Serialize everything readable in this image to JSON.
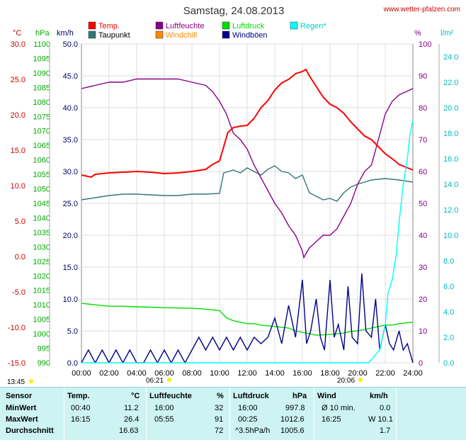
{
  "header": {
    "title": "Samstag, 24.08.2013",
    "source": "www.wetter-pfalzen.com"
  },
  "axis_units": {
    "temp": "°C",
    "pressure": "hPa",
    "wind": "km/h",
    "humidity": "%",
    "rain": "l/m²"
  },
  "legend": [
    {
      "label": "Temp.",
      "color": "#ff0000"
    },
    {
      "label": "Taupunkt",
      "color": "#337777"
    },
    {
      "label": "Luftfeuchte",
      "color": "#880088"
    },
    {
      "label": "Windchill",
      "color": "#ff8800"
    },
    {
      "label": "Luftdruck",
      "color": "#00dd00"
    },
    {
      "label": "Windböen",
      "color": "#000088"
    },
    {
      "label": "Regen*",
      "color": "#00ffff"
    }
  ],
  "sun": {
    "sunrise_prev": "13:45",
    "sunrise": "06:21",
    "sunset": "20:06"
  },
  "chart_data": {
    "type": "line",
    "title": "Samstag, 24.08.2013",
    "x_ticks": [
      "00:00",
      "02:00",
      "04:00",
      "06:00",
      "08:00",
      "10:00",
      "12:00",
      "14:00",
      "16:00",
      "18:00",
      "20:00",
      "22:00",
      "24:00"
    ],
    "axes": {
      "temp": {
        "unit": "°C",
        "range": [
          -15,
          30
        ],
        "ticks": [
          "30.0",
          "25.0",
          "20.0",
          "15.0",
          "10.0",
          "5.0",
          "0.0",
          "-5.0",
          "-10.0",
          "-15.0"
        ]
      },
      "pressure": {
        "unit": "hPa",
        "range": [
          990,
          1100
        ],
        "ticks": [
          "1100",
          "1095",
          "1090",
          "1085",
          "1080",
          "1075",
          "1070",
          "1065",
          "1060",
          "1055",
          "1050",
          "1045",
          "1040",
          "1035",
          "1030",
          "1025",
          "1020",
          "1015",
          "1010",
          "1005",
          "1000",
          "995",
          "990"
        ]
      },
      "wind": {
        "unit": "km/h",
        "range": [
          0,
          50
        ],
        "ticks": [
          "50.0",
          "45.0",
          "40.0",
          "35.0",
          "30.0",
          "25.0",
          "20.0",
          "15.0",
          "10.0",
          "5.0",
          "0.0"
        ]
      },
      "humidity": {
        "unit": "%",
        "range": [
          0,
          100
        ],
        "ticks": [
          "100",
          "90",
          "80",
          "70",
          "60",
          "50",
          "40",
          "30",
          "20",
          "10",
          "0"
        ]
      },
      "rain": {
        "unit": "l/m²",
        "range": [
          0,
          25
        ],
        "ticks": [
          "24.0",
          "22.0",
          "20.0",
          "18.0",
          "16.0",
          "14.0",
          "12.0",
          "10.0",
          "8.0",
          "6.0",
          "4.0",
          "2.0",
          "0.0"
        ]
      }
    },
    "series": [
      {
        "name": "Temp.",
        "axis": "temp",
        "color": "#ff0000",
        "x": [
          0,
          0.7,
          1,
          2,
          3,
          4,
          5,
          6,
          7,
          8,
          9,
          9.5,
          10,
          10.3,
          10.6,
          11,
          11.5,
          12,
          12.5,
          13,
          13.5,
          14,
          14.5,
          15,
          15.5,
          16,
          16.25,
          16.5,
          17,
          17.5,
          18,
          18.5,
          19,
          19.5,
          20,
          20.5,
          21,
          21.5,
          22,
          22.5,
          23,
          24
        ],
        "y": [
          11.5,
          11.2,
          11.6,
          11.8,
          11.9,
          12.0,
          11.9,
          11.7,
          11.8,
          12.0,
          12.3,
          13.0,
          13.5,
          15.5,
          17.5,
          18.2,
          18.4,
          18.5,
          19.5,
          21.0,
          22.0,
          23.5,
          24.5,
          25.0,
          25.8,
          26.1,
          26.4,
          25.5,
          24.0,
          22.5,
          21.5,
          21.0,
          20.2,
          19.0,
          18.0,
          17.0,
          16.5,
          15.5,
          14.5,
          13.8,
          13.0,
          12.2
        ]
      },
      {
        "name": "Taupunkt",
        "axis": "temp",
        "color": "#337777",
        "x": [
          0,
          1,
          2,
          3,
          4,
          5,
          6,
          7,
          8,
          9,
          10,
          10.3,
          11,
          11.5,
          12,
          12.5,
          13,
          13.5,
          14,
          14.5,
          15,
          15.5,
          16,
          16.5,
          17,
          17.5,
          18,
          18.5,
          19,
          19.5,
          20,
          20.5,
          21,
          22,
          23,
          24
        ],
        "y": [
          8.0,
          8.3,
          8.6,
          8.8,
          8.8,
          8.7,
          8.6,
          8.6,
          8.8,
          8.8,
          8.9,
          11.8,
          12.2,
          11.8,
          12.5,
          12.0,
          11.5,
          12.3,
          12.8,
          12.0,
          11.8,
          11.0,
          11.5,
          9.0,
          8.5,
          8.0,
          8.2,
          7.8,
          9.0,
          9.8,
          10.2,
          10.5,
          10.8,
          11.0,
          10.8,
          10.5
        ]
      },
      {
        "name": "Luftfeuchte",
        "axis": "humidity",
        "color": "#880088",
        "x": [
          0,
          1,
          2,
          3,
          4,
          5,
          6,
          7,
          8,
          9,
          9.5,
          10,
          10.5,
          11,
          11.5,
          12,
          12.5,
          13,
          13.5,
          14,
          14.5,
          15,
          15.5,
          16,
          16.1,
          16.5,
          17,
          17.5,
          18,
          18.5,
          19,
          19.5,
          20,
          20.5,
          21,
          21.5,
          22,
          22.5,
          23,
          24
        ],
        "y": [
          86,
          87,
          88,
          88,
          89,
          89,
          89,
          89,
          88,
          87,
          85,
          82,
          78,
          72,
          70,
          67,
          62,
          58,
          54,
          50,
          47,
          43,
          40,
          35,
          33,
          36,
          38,
          40,
          40,
          42,
          46,
          50,
          56,
          60,
          62,
          70,
          78,
          82,
          84,
          86
        ]
      },
      {
        "name": "Luftdruck",
        "axis": "pressure",
        "color": "#00dd00",
        "x": [
          0,
          1,
          2,
          3,
          4,
          5,
          6,
          7,
          8,
          9,
          10,
          10.5,
          11,
          11.5,
          12,
          12.5,
          13,
          14,
          15,
          15.5,
          16,
          17,
          18,
          18.5,
          19,
          19.5,
          20,
          20.5,
          21,
          21.5,
          22,
          22.5,
          23,
          24
        ],
        "y": [
          1010.5,
          1010.0,
          1009.5,
          1009.5,
          1009.3,
          1009.2,
          1009.0,
          1008.9,
          1008.8,
          1008.5,
          1008.0,
          1005.5,
          1004.5,
          1004.0,
          1003.5,
          1003.5,
          1003.0,
          1002.5,
          1002.0,
          1001.0,
          1000.5,
          999.5,
          999.8,
          1000.0,
          1000.3,
          1000.8,
          1001.0,
          1001.5,
          1002.0,
          1002.5,
          1003.0,
          1003.0,
          1003.5,
          1004.0
        ]
      },
      {
        "name": "Windböen",
        "axis": "wind",
        "color": "#000088",
        "x": [
          0,
          0.5,
          1,
          1.5,
          2,
          2.5,
          3,
          3.5,
          4,
          4.5,
          5,
          5.5,
          6,
          6.5,
          7,
          7.5,
          8,
          8.5,
          9,
          9.5,
          10,
          10.5,
          11,
          11.5,
          12,
          12.5,
          13,
          13.5,
          14,
          14.5,
          15,
          15.5,
          16,
          16.3,
          16.6,
          17,
          17.3,
          17.6,
          18,
          18.3,
          18.6,
          19,
          19.3,
          19.6,
          20,
          20.3,
          20.6,
          21,
          21.3,
          21.6,
          22,
          22.3,
          22.6,
          23,
          23.3,
          23.6,
          24
        ],
        "y": [
          0,
          2,
          0,
          2,
          0,
          2,
          0,
          2,
          0,
          0,
          2,
          0,
          2,
          0,
          2,
          0,
          2,
          4,
          2,
          4,
          2,
          4,
          2,
          4,
          2,
          4,
          3,
          4,
          7,
          3,
          9,
          4,
          13,
          3,
          5,
          10,
          4,
          2,
          13,
          4,
          6,
          2,
          12,
          4,
          3,
          14,
          5,
          4,
          10,
          2,
          6,
          3,
          2,
          5,
          2,
          3,
          0
        ]
      },
      {
        "name": "Regen*",
        "axis": "rain",
        "color": "#00ffff",
        "x": [
          0,
          20.8,
          21.2,
          21.6,
          22,
          22.2,
          22.5,
          22.8,
          23,
          23.3,
          23.6,
          23.8,
          24
        ],
        "y": [
          0,
          0,
          0.5,
          1,
          3,
          5.5,
          6.5,
          8.5,
          11,
          14,
          16,
          18,
          19
        ]
      }
    ]
  },
  "stats": {
    "headers": {
      "sensor": "Sensor",
      "temp": "Temp.",
      "temp_unit": "°C",
      "hum": "Luftfeuchte",
      "hum_unit": "%",
      "press": "Luftdruck",
      "press_unit": "hPa",
      "wind": "Wind",
      "wind_unit": "km/h"
    },
    "rows": [
      {
        "label": "MinWert",
        "temp_time": "00:40",
        "temp_val": "11.2",
        "hum_time": "16:00",
        "hum_val": "32",
        "press_time": "16:00",
        "press_val": "997.8",
        "wind_time": "Ø 10 min.",
        "wind_val": "0.0"
      },
      {
        "label": "MaxWert",
        "temp_time": "16:15",
        "temp_val": "26.4",
        "hum_time": "05:55",
        "hum_val": "91",
        "press_time": "00:25",
        "press_val": "1012.6",
        "wind_time": "16:25",
        "wind_val": "W 10.1"
      },
      {
        "label": "Durchschnitt",
        "temp_time": "",
        "temp_val": "16.63",
        "hum_time": "",
        "hum_val": "72",
        "press_time": "^3.5hPa/h",
        "press_val": "1005.6",
        "wind_time": "",
        "wind_val": "1.7"
      }
    ]
  }
}
